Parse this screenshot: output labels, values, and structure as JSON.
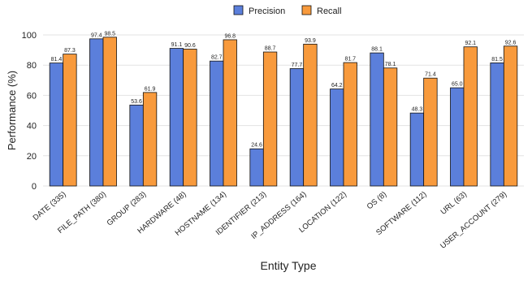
{
  "chart_data": {
    "type": "bar",
    "title": "",
    "xlabel": "Entity Type",
    "ylabel": "Performance (%)",
    "ylim": [
      0,
      100
    ],
    "yticks": [
      0,
      20,
      40,
      60,
      80,
      100
    ],
    "grid": true,
    "legend_position": "top-center",
    "categories": [
      "DATE (335)",
      "FILE_PATH (380)",
      "GROUP (283)",
      "HARDWARE (48)",
      "HOSTNAME (134)",
      "IDENTIFIER (213)",
      "IP_ADDRESS (164)",
      "LOCATION (122)",
      "OS (8)",
      "SOFTWARE (112)",
      "URL (63)",
      "USER_ACCOUNT (279)"
    ],
    "series": [
      {
        "name": "Precision",
        "color": "#5b7fdb",
        "values": [
          81.4,
          97.4,
          53.6,
          91.1,
          82.7,
          24.6,
          77.7,
          64.2,
          88.1,
          48.3,
          65.0,
          81.5
        ],
        "labels": [
          "81.4",
          "97.4",
          "53.6",
          "91.1",
          "82.7",
          "24.6",
          "77.7",
          "64.2",
          "88.1",
          "48.3",
          "65.0",
          "81.5"
        ]
      },
      {
        "name": "Recall",
        "color": "#f89a3c",
        "values": [
          87.3,
          98.5,
          61.9,
          90.6,
          96.8,
          88.7,
          93.9,
          81.7,
          78.1,
          71.4,
          92.1,
          92.6
        ],
        "labels": [
          "87.3",
          "98.5",
          "61.9",
          "90.6",
          "96.8",
          "88.7",
          "93.9",
          "81.7",
          "78.1",
          "71.4",
          "92.1",
          "92.6"
        ]
      }
    ]
  }
}
